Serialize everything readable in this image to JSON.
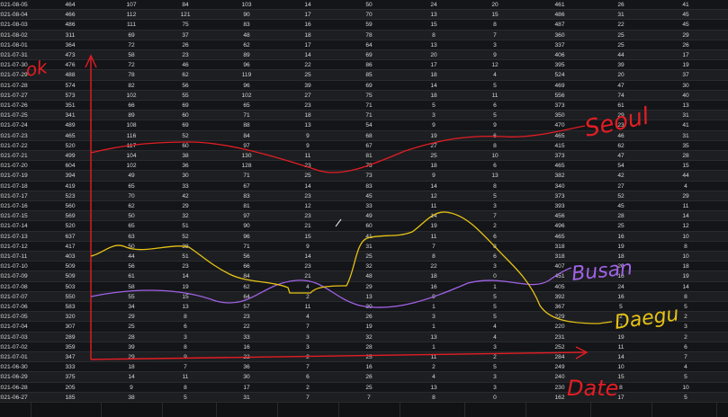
{
  "columns": [
    {
      "key": "date"
    },
    {
      "key": "c1",
      "x": 78
    },
    {
      "key": "c2",
      "x": 146
    },
    {
      "key": "c3",
      "x": 206
    },
    {
      "key": "c4",
      "x": 274
    },
    {
      "key": "c5",
      "x": 342
    },
    {
      "key": "c6",
      "x": 410
    },
    {
      "key": "c7",
      "x": 482
    },
    {
      "key": "c8",
      "x": 550
    },
    {
      "key": "c9",
      "x": 622
    },
    {
      "key": "c10",
      "x": 690
    },
    {
      "key": "c11",
      "x": 762
    }
  ],
  "rows": [
    [
      "2021-08-05",
      "464",
      "107",
      "84",
      "103",
      "14",
      "50",
      "24",
      "20",
      "461",
      "26",
      "41"
    ],
    [
      "2021-08-04",
      "466",
      "112",
      "121",
      "90",
      "17",
      "70",
      "13",
      "15",
      "486",
      "31",
      "45"
    ],
    [
      "2021-08-03",
      "486",
      "111",
      "75",
      "83",
      "16",
      "59",
      "15",
      "8",
      "487",
      "22",
      "45"
    ],
    [
      "2021-08-02",
      "311",
      "69",
      "37",
      "48",
      "18",
      "78",
      "8",
      "7",
      "360",
      "25",
      "29"
    ],
    [
      "2021-08-01",
      "364",
      "72",
      "26",
      "62",
      "17",
      "64",
      "13",
      "3",
      "337",
      "25",
      "26"
    ],
    [
      "2021-07-31",
      "473",
      "58",
      "23",
      "89",
      "14",
      "69",
      "20",
      "9",
      "406",
      "44",
      "17"
    ],
    [
      "2021-07-30",
      "476",
      "72",
      "46",
      "96",
      "22",
      "86",
      "17",
      "12",
      "395",
      "39",
      "19"
    ],
    [
      "2021-07-29",
      "488",
      "78",
      "62",
      "119",
      "25",
      "85",
      "18",
      "4",
      "524",
      "20",
      "37"
    ],
    [
      "2021-07-28",
      "574",
      "82",
      "56",
      "96",
      "39",
      "69",
      "14",
      "5",
      "469",
      "47",
      "30"
    ],
    [
      "2021-07-27",
      "573",
      "102",
      "55",
      "102",
      "27",
      "75",
      "18",
      "11",
      "556",
      "74",
      "40"
    ],
    [
      "2021-07-26",
      "351",
      "66",
      "69",
      "65",
      "23",
      "71",
      "5",
      "6",
      "373",
      "61",
      "13"
    ],
    [
      "2021-07-25",
      "341",
      "89",
      "60",
      "71",
      "18",
      "71",
      "3",
      "5",
      "350",
      "29",
      "31"
    ],
    [
      "2021-07-24",
      "489",
      "108",
      "69",
      "88",
      "13",
      "54",
      "9",
      "9",
      "470",
      "23",
      "41"
    ],
    [
      "2021-07-23",
      "465",
      "116",
      "52",
      "84",
      "9",
      "68",
      "19",
      "6",
      "465",
      "46",
      "31"
    ],
    [
      "2021-07-22",
      "520",
      "117",
      "60",
      "97",
      "9",
      "67",
      "27",
      "8",
      "415",
      "62",
      "35"
    ],
    [
      "2021-07-21",
      "499",
      "104",
      "38",
      "130",
      "11",
      "81",
      "25",
      "10",
      "373",
      "47",
      "28"
    ],
    [
      "2021-07-20",
      "604",
      "102",
      "36",
      "128",
      "23",
      "73",
      "18",
      "6",
      "465",
      "54",
      "15"
    ],
    [
      "2021-07-19",
      "394",
      "49",
      "30",
      "71",
      "25",
      "73",
      "9",
      "13",
      "382",
      "42",
      "44"
    ],
    [
      "2021-07-18",
      "419",
      "65",
      "33",
      "67",
      "14",
      "83",
      "14",
      "8",
      "340",
      "27",
      "4"
    ],
    [
      "2021-07-17",
      "523",
      "70",
      "42",
      "83",
      "23",
      "45",
      "12",
      "5",
      "373",
      "52",
      "29"
    ],
    [
      "2021-07-16",
      "560",
      "62",
      "29",
      "81",
      "12",
      "33",
      "11",
      "3",
      "393",
      "45",
      "11"
    ],
    [
      "2021-07-15",
      "569",
      "50",
      "32",
      "97",
      "23",
      "49",
      "14",
      "7",
      "456",
      "28",
      "14"
    ],
    [
      "2021-07-14",
      "520",
      "65",
      "51",
      "90",
      "21",
      "60",
      "19",
      "2",
      "496",
      "25",
      "12"
    ],
    [
      "2021-07-13",
      "637",
      "63",
      "52",
      "96",
      "15",
      "41",
      "11",
      "6",
      "465",
      "16",
      "10"
    ],
    [
      "2021-07-12",
      "417",
      "50",
      "38",
      "71",
      "9",
      "31",
      "7",
      "8",
      "318",
      "19",
      "8"
    ],
    [
      "2021-07-11",
      "403",
      "44",
      "51",
      "56",
      "14",
      "25",
      "8",
      "6",
      "318",
      "18",
      "10"
    ],
    [
      "2021-07-10",
      "509",
      "56",
      "23",
      "66",
      "23",
      "32",
      "22",
      "3",
      "407",
      "20",
      "18"
    ],
    [
      "2021-07-09",
      "509",
      "61",
      "14",
      "84",
      "21",
      "48",
      "18",
      "0",
      "451",
      "16",
      "19"
    ],
    [
      "2021-07-08",
      "503",
      "58",
      "19",
      "62",
      "4",
      "29",
      "16",
      "1",
      "405",
      "24",
      "14"
    ],
    [
      "2021-07-07",
      "550",
      "55",
      "15",
      "64",
      "2",
      "13",
      "9",
      "5",
      "392",
      "16",
      "8"
    ],
    [
      "2021-07-06",
      "583",
      "34",
      "13",
      "57",
      "11",
      "30",
      "1",
      "5",
      "367",
      "5",
      "5"
    ],
    [
      "2021-07-05",
      "320",
      "29",
      "8",
      "23",
      "4",
      "26",
      "3",
      "5",
      "229",
      "2",
      "2"
    ],
    [
      "2021-07-04",
      "307",
      "25",
      "6",
      "22",
      "7",
      "19",
      "1",
      "4",
      "220",
      "7",
      "3"
    ],
    [
      "2021-07-03",
      "289",
      "28",
      "3",
      "33",
      "3",
      "32",
      "13",
      "4",
      "231",
      "19",
      "2"
    ],
    [
      "2021-07-02",
      "359",
      "39",
      "8",
      "16",
      "3",
      "28",
      "1",
      "3",
      "252",
      "11",
      "6"
    ],
    [
      "2021-07-01",
      "347",
      "29",
      "9",
      "22",
      "2",
      "25",
      "11",
      "2",
      "284",
      "14",
      "7"
    ],
    [
      "2021-06-30",
      "333",
      "18",
      "7",
      "36",
      "7",
      "16",
      "2",
      "5",
      "249",
      "10",
      "4"
    ],
    [
      "2021-06-29",
      "375",
      "14",
      "11",
      "30",
      "6",
      "26",
      "4",
      "3",
      "240",
      "15",
      "5"
    ],
    [
      "2021-06-28",
      "205",
      "9",
      "8",
      "17",
      "2",
      "25",
      "13",
      "3",
      "230",
      "8",
      "10"
    ],
    [
      "2021-06-27",
      "185",
      "38",
      "5",
      "31",
      "7",
      "7",
      "8",
      "0",
      "162",
      "17",
      "5"
    ]
  ],
  "annotations": {
    "y_axis_label": "ok",
    "x_axis_label": "Date",
    "seoul_label": "Seoul",
    "busan_label": "Busan",
    "daegu_label": "Daegu",
    "colors": {
      "axis": "#e31d24",
      "seoul": "#e31d24",
      "busan": "#a062e8",
      "daegu": "#e6c315"
    }
  }
}
